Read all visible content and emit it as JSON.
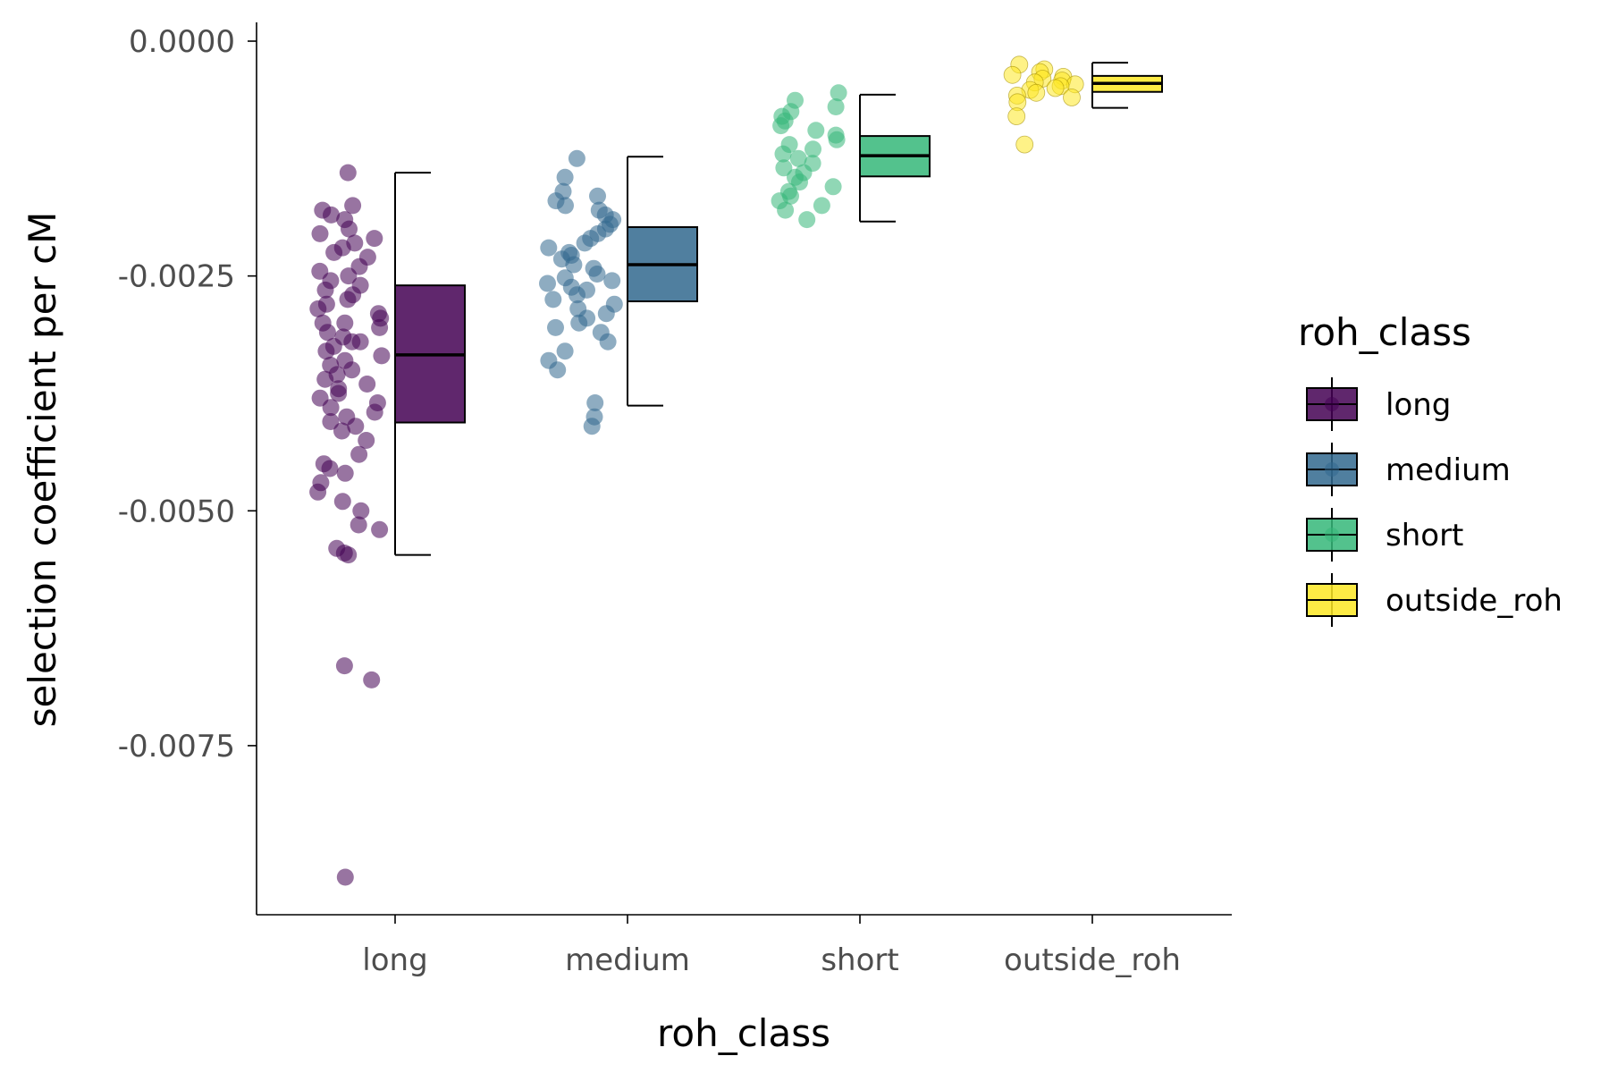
{
  "chart_data": {
    "type": "boxplot",
    "title": "",
    "xlabel": "roh_class",
    "ylabel": "selection coefficient per cM",
    "ylim": [
      -0.0093,
      0.0002
    ],
    "y_ticks": [
      0.0,
      -0.0025,
      -0.005,
      -0.0075
    ],
    "y_tick_labels": [
      "0.0000",
      "-0.0025",
      "-0.0050",
      "-0.0075"
    ],
    "categories": [
      "long",
      "medium",
      "short",
      "outside_roh"
    ],
    "grid": false,
    "legend": {
      "title": "roh_class",
      "position": "right",
      "entries": [
        "long",
        "medium",
        "short",
        "outside_roh"
      ]
    },
    "colors": [
      "#440154",
      "#31688e",
      "#35b779",
      "#fde725"
    ],
    "boxes": [
      {
        "category": "long",
        "whisker_low": -0.00547,
        "q1": -0.00406,
        "median": -0.00334,
        "q3": -0.0026,
        "whisker_high": -0.0014
      },
      {
        "category": "medium",
        "whisker_low": -0.00388,
        "q1": -0.00277,
        "median": -0.00238,
        "q3": -0.00198,
        "whisker_high": -0.00123
      },
      {
        "category": "short",
        "whisker_low": -0.00192,
        "q1": -0.00144,
        "median": -0.00122,
        "q3": -0.00101,
        "whisker_high": -0.00057
      },
      {
        "category": "outside_roh",
        "whisker_low": -0.00071,
        "q1": -0.00054,
        "median": -0.00045,
        "q3": -0.00037,
        "whisker_high": -0.00023
      }
    ],
    "points": [
      [
        -0.0014,
        -0.00175,
        -0.0018,
        -0.00185,
        -0.0019,
        -0.002,
        -0.00205,
        -0.0021,
        -0.00215,
        -0.0022,
        -0.00225,
        -0.0023,
        -0.0024,
        -0.00245,
        -0.0025,
        -0.00255,
        -0.0026,
        -0.00265,
        -0.0027,
        -0.00275,
        -0.0028,
        -0.00285,
        -0.0029,
        -0.00295,
        -0.003,
        -0.003,
        -0.00305,
        -0.0031,
        -0.00315,
        -0.0032,
        -0.0032,
        -0.00325,
        -0.0033,
        -0.00335,
        -0.0034,
        -0.00345,
        -0.0035,
        -0.00355,
        -0.0036,
        -0.00365,
        -0.0037,
        -0.00375,
        -0.0038,
        -0.00385,
        -0.0039,
        -0.00395,
        -0.004,
        -0.00405,
        -0.0041,
        -0.00415,
        -0.00425,
        -0.0044,
        -0.0045,
        -0.00455,
        -0.0046,
        -0.0047,
        -0.0048,
        -0.0049,
        -0.005,
        -0.00515,
        -0.0052,
        -0.0054,
        -0.00545,
        -0.00547,
        -0.00665,
        -0.0068,
        -0.0089
      ],
      [
        -0.00125,
        -0.00145,
        -0.0016,
        -0.00165,
        -0.0017,
        -0.00175,
        -0.0018,
        -0.00185,
        -0.0019,
        -0.00195,
        -0.002,
        -0.00205,
        -0.0021,
        -0.00215,
        -0.0022,
        -0.00225,
        -0.00228,
        -0.00232,
        -0.00238,
        -0.00242,
        -0.00248,
        -0.00252,
        -0.00255,
        -0.00258,
        -0.00262,
        -0.00265,
        -0.0027,
        -0.00275,
        -0.0028,
        -0.00285,
        -0.0029,
        -0.00295,
        -0.003,
        -0.00305,
        -0.0031,
        -0.0032,
        -0.0033,
        -0.0034,
        -0.0035,
        -0.00385,
        -0.004,
        -0.0041
      ],
      [
        -0.00055,
        -0.00063,
        -0.0007,
        -0.00075,
        -0.0008,
        -0.00085,
        -0.0009,
        -0.00095,
        -0.001,
        -0.00105,
        -0.0011,
        -0.00115,
        -0.0012,
        -0.00125,
        -0.0013,
        -0.00135,
        -0.0014,
        -0.00145,
        -0.0015,
        -0.00155,
        -0.0016,
        -0.00165,
        -0.0017,
        -0.00175,
        -0.0018,
        -0.0019
      ],
      [
        -0.00025,
        -0.0003,
        -0.00033,
        -0.00036,
        -0.00038,
        -0.0004,
        -0.00042,
        -0.00044,
        -0.00046,
        -0.00048,
        -0.0005,
        -0.00052,
        -0.00055,
        -0.00058,
        -0.0006,
        -0.00065,
        -0.0008,
        -0.0011
      ]
    ]
  }
}
